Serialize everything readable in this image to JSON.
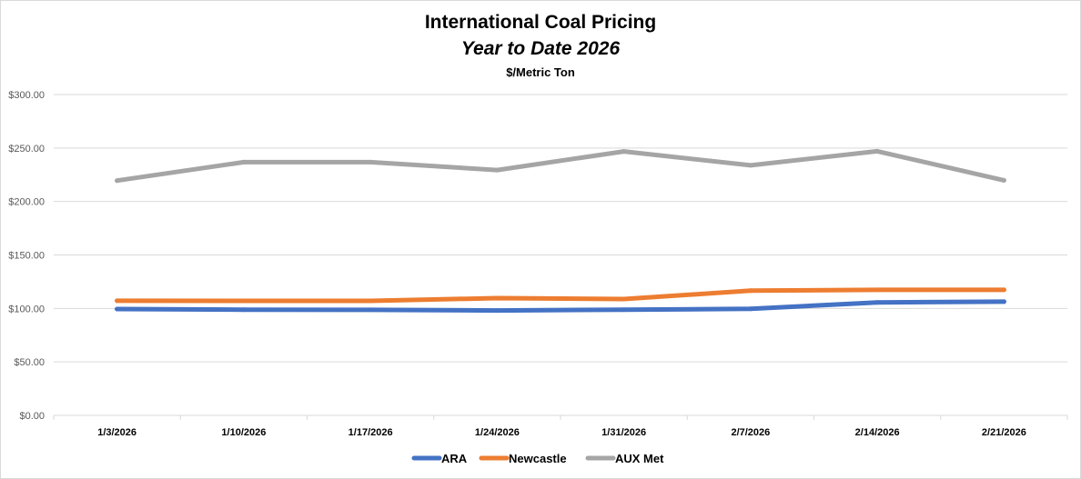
{
  "chart_data": {
    "type": "line",
    "title": "International Coal Pricing",
    "subtitle": "Year to Date 2026",
    "units_label": "$/Metric Ton",
    "xlabel": "",
    "ylabel": "",
    "categories": [
      "1/3/2026",
      "1/10/2026",
      "1/17/2026",
      "1/24/2026",
      "1/31/2026",
      "2/7/2026",
      "2/14/2026",
      "2/21/2026"
    ],
    "ylim": [
      0,
      300
    ],
    "yticks": [
      0,
      50,
      100,
      150,
      200,
      250,
      300
    ],
    "ytick_labels": [
      "$0.00",
      "$50.00",
      "$100.00",
      "$150.00",
      "$200.00",
      "$250.00",
      "$300.00"
    ],
    "grid": true,
    "legend_position": "bottom",
    "series": [
      {
        "name": "ARA",
        "color": "#4472c4",
        "values": [
          99.4,
          98.8,
          98.7,
          98.1,
          98.8,
          99.6,
          105.6,
          106.3
        ]
      },
      {
        "name": "Newcastle",
        "color": "#ed7d31",
        "values": [
          107.2,
          107.1,
          107.1,
          109.6,
          108.8,
          116.6,
          117.4,
          117.4
        ]
      },
      {
        "name": "AUX Met",
        "color": "#a5a5a5",
        "values": [
          219.5,
          236.8,
          236.8,
          229.4,
          246.8,
          233.8,
          247.0,
          219.8
        ]
      }
    ]
  }
}
